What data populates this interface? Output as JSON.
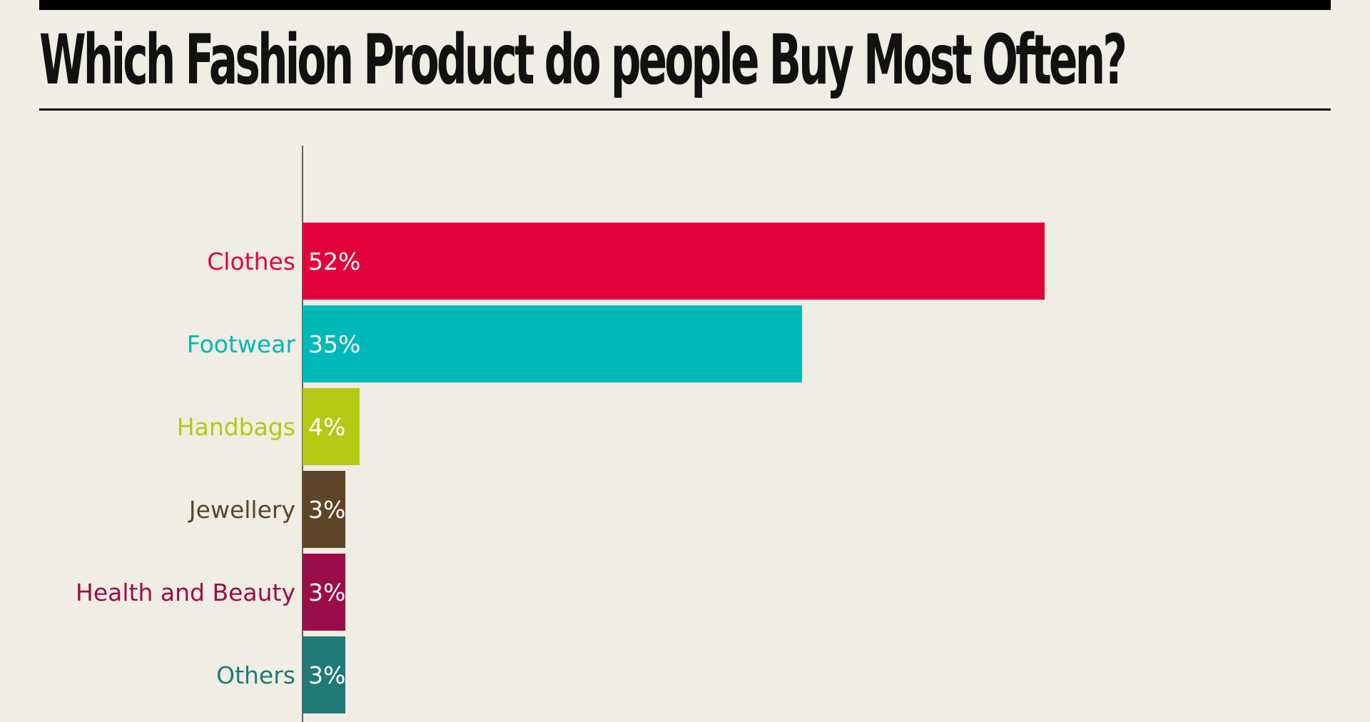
{
  "title": "Which Fashion Product do people Buy Most Often?",
  "chart_data": {
    "type": "bar",
    "orientation": "horizontal",
    "title": "Which Fashion Product do people Buy Most Often?",
    "categories": [
      "Clothes",
      "Footwear",
      "Handbags",
      "Jewellery",
      "Health and Beauty",
      "Others"
    ],
    "values": [
      52,
      35,
      4,
      3,
      3,
      3
    ],
    "value_labels": [
      "52%",
      "35%",
      "4%",
      "3%",
      "3%",
      "3%"
    ],
    "unit": "%",
    "colors": [
      "#e2003b",
      "#00b8b8",
      "#b3c914",
      "#5e4427",
      "#9b0d48",
      "#1f7a78"
    ],
    "xlim": [
      0,
      60
    ],
    "grid": false,
    "legend": "none"
  }
}
